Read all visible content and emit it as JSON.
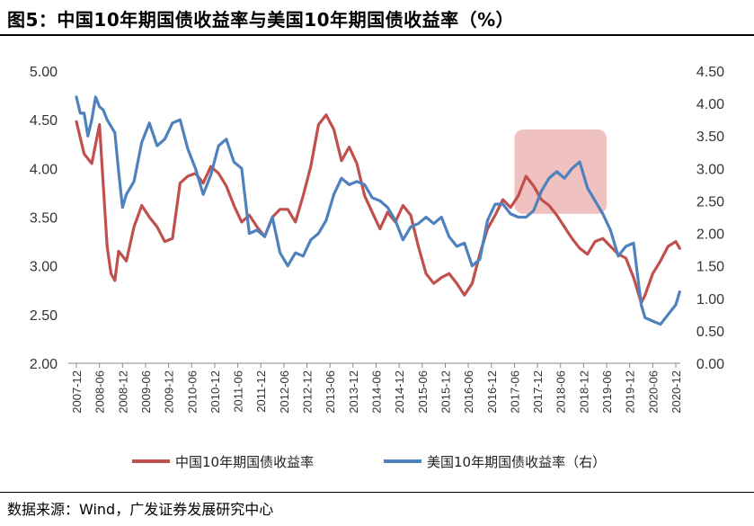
{
  "title": "图5：中国10年期国债收益率与美国10年期国债收益率（%）",
  "source": "数据来源：Wind，广发证券发展研究中心",
  "colors": {
    "cn": "#C0504D",
    "us": "#4F81BD",
    "highlight": "#E8A0A0"
  },
  "chart_data": {
    "type": "line",
    "title": "图5：中国10年期国债收益率与美国10年期国债收益率（%）",
    "xlabel": "",
    "ylabel": "",
    "ylim": [
      2.0,
      5.0
    ],
    "y2lim": [
      0.0,
      4.5
    ],
    "yticks": [
      "5.00",
      "4.50",
      "4.00",
      "3.50",
      "3.00",
      "2.50",
      "2.00"
    ],
    "y2ticks": [
      "4.50",
      "4.00",
      "3.50",
      "3.00",
      "2.50",
      "2.00",
      "1.50",
      "1.00",
      "0.50",
      "0.00"
    ],
    "xticks": [
      "2007-12",
      "2008-06",
      "2008-12",
      "2009-06",
      "2009-12",
      "2010-06",
      "2010-12",
      "2011-06",
      "2011-12",
      "2012-06",
      "2012-12",
      "2013-06",
      "2013-12",
      "2014-06",
      "2014-12",
      "2015-06",
      "2015-12",
      "2016-06",
      "2016-12",
      "2017-06",
      "2017-12",
      "2018-06",
      "2018-12",
      "2019-06",
      "2019-12",
      "2020-06",
      "2020-12"
    ],
    "highlight": {
      "x": [
        "2017-06",
        "2019-06"
      ],
      "axis": "right",
      "y": [
        2.3,
        3.6
      ]
    },
    "grid": false,
    "legend": "bottom",
    "series": [
      {
        "name": "中国10年期国债收益率",
        "axis": "left",
        "x": [
          "2007-12",
          "2008-02",
          "2008-04",
          "2008-06",
          "2008-08",
          "2008-09",
          "2008-10",
          "2008-11",
          "2008-12",
          "2009-01",
          "2009-03",
          "2009-05",
          "2009-07",
          "2009-09",
          "2009-11",
          "2010-01",
          "2010-03",
          "2010-05",
          "2010-07",
          "2010-09",
          "2010-11",
          "2011-01",
          "2011-03",
          "2011-05",
          "2011-07",
          "2011-09",
          "2011-11",
          "2012-01",
          "2012-03",
          "2012-05",
          "2012-07",
          "2012-09",
          "2012-11",
          "2013-01",
          "2013-03",
          "2013-05",
          "2013-07",
          "2013-09",
          "2013-11",
          "2014-01",
          "2014-03",
          "2014-05",
          "2014-07",
          "2014-09",
          "2014-11",
          "2015-01",
          "2015-03",
          "2015-05",
          "2015-07",
          "2015-09",
          "2015-11",
          "2016-01",
          "2016-03",
          "2016-05",
          "2016-07",
          "2016-09",
          "2016-11",
          "2017-01",
          "2017-03",
          "2017-05",
          "2017-07",
          "2017-09",
          "2017-11",
          "2018-01",
          "2018-03",
          "2018-05",
          "2018-07",
          "2018-09",
          "2018-11",
          "2019-01",
          "2019-03",
          "2019-05",
          "2019-07",
          "2019-09",
          "2019-11",
          "2020-01",
          "2020-03",
          "2020-04",
          "2020-06",
          "2020-08",
          "2020-10",
          "2020-12",
          "2021-01"
        ],
        "values": [
          4.48,
          4.15,
          4.05,
          4.45,
          3.2,
          2.92,
          2.85,
          3.15,
          3.1,
          3.05,
          3.4,
          3.62,
          3.5,
          3.4,
          3.25,
          3.28,
          3.85,
          3.92,
          3.95,
          3.85,
          4.02,
          3.95,
          3.82,
          3.62,
          3.45,
          3.52,
          3.4,
          3.3,
          3.5,
          3.58,
          3.58,
          3.45,
          3.72,
          4.02,
          4.45,
          4.55,
          4.4,
          4.08,
          4.22,
          4.05,
          3.72,
          3.55,
          3.38,
          3.55,
          3.45,
          3.62,
          3.52,
          3.2,
          2.92,
          2.82,
          2.88,
          2.92,
          2.82,
          2.7,
          2.82,
          3.12,
          3.38,
          3.52,
          3.68,
          3.6,
          3.72,
          3.92,
          3.82,
          3.68,
          3.62,
          3.52,
          3.4,
          3.28,
          3.18,
          3.12,
          3.25,
          3.28,
          3.2,
          3.12,
          3.08,
          2.88,
          2.62,
          2.7,
          2.92,
          3.05,
          3.2,
          3.25,
          3.18
        ]
      },
      {
        "name": "美国10年期国债收益率（右）",
        "axis": "right",
        "x": [
          "2007-12",
          "2008-01",
          "2008-02",
          "2008-03",
          "2008-04",
          "2008-05",
          "2008-06",
          "2008-07",
          "2008-08",
          "2008-09",
          "2008-10",
          "2008-11",
          "2008-12",
          "2009-01",
          "2009-03",
          "2009-05",
          "2009-07",
          "2009-09",
          "2009-11",
          "2010-01",
          "2010-03",
          "2010-05",
          "2010-07",
          "2010-09",
          "2010-11",
          "2011-01",
          "2011-03",
          "2011-05",
          "2011-07",
          "2011-09",
          "2011-11",
          "2012-01",
          "2012-03",
          "2012-05",
          "2012-07",
          "2012-09",
          "2012-11",
          "2013-01",
          "2013-03",
          "2013-05",
          "2013-07",
          "2013-09",
          "2013-11",
          "2014-01",
          "2014-03",
          "2014-05",
          "2014-07",
          "2014-09",
          "2014-11",
          "2015-01",
          "2015-03",
          "2015-05",
          "2015-07",
          "2015-09",
          "2015-11",
          "2016-01",
          "2016-03",
          "2016-05",
          "2016-07",
          "2016-09",
          "2016-11",
          "2017-01",
          "2017-03",
          "2017-05",
          "2017-07",
          "2017-09",
          "2017-11",
          "2018-01",
          "2018-03",
          "2018-05",
          "2018-07",
          "2018-09",
          "2018-11",
          "2019-01",
          "2019-03",
          "2019-05",
          "2019-07",
          "2019-09",
          "2019-11",
          "2020-01",
          "2020-03",
          "2020-04",
          "2020-06",
          "2020-08",
          "2020-10",
          "2020-12",
          "2021-01"
        ],
        "values": [
          4.1,
          3.85,
          3.85,
          3.5,
          3.75,
          4.1,
          3.95,
          3.9,
          3.75,
          3.65,
          3.55,
          2.95,
          2.4,
          2.6,
          2.8,
          3.4,
          3.7,
          3.35,
          3.45,
          3.7,
          3.75,
          3.3,
          3.0,
          2.6,
          2.9,
          3.35,
          3.45,
          3.1,
          3.0,
          2.0,
          2.05,
          1.95,
          2.25,
          1.7,
          1.5,
          1.7,
          1.65,
          1.9,
          2.0,
          2.2,
          2.6,
          2.85,
          2.75,
          2.8,
          2.75,
          2.55,
          2.5,
          2.4,
          2.2,
          1.9,
          2.1,
          2.15,
          2.25,
          2.15,
          2.25,
          1.95,
          1.8,
          1.85,
          1.5,
          1.6,
          2.2,
          2.45,
          2.45,
          2.3,
          2.25,
          2.25,
          2.35,
          2.65,
          2.85,
          2.95,
          2.85,
          3.0,
          3.1,
          2.7,
          2.5,
          2.3,
          2.05,
          1.65,
          1.8,
          1.85,
          0.9,
          0.7,
          0.65,
          0.6,
          0.75,
          0.9,
          1.1
        ]
      }
    ]
  }
}
